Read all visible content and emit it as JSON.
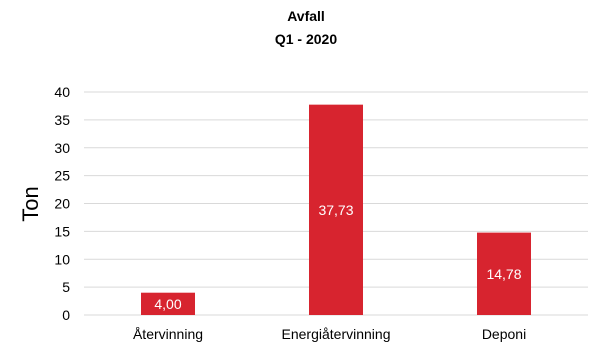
{
  "chart_data": {
    "type": "bar",
    "title": "Avfall",
    "subtitle": "Q1 - 2020",
    "xlabel": "",
    "ylabel": "Ton",
    "categories": [
      "Återvinning",
      "Energiåtervinning",
      "Deponi"
    ],
    "values": [
      4.0,
      37.73,
      14.78
    ],
    "data_labels": [
      "4,00",
      "37,73",
      "14,78"
    ],
    "ylim": [
      0,
      40
    ],
    "yticks": [
      0,
      5,
      10,
      15,
      20,
      25,
      30,
      35,
      40
    ],
    "grid": true,
    "legend": "none",
    "bar_color": "#d7242f",
    "grid_color": "#d9d9d9",
    "label_color": "#ffffff"
  }
}
